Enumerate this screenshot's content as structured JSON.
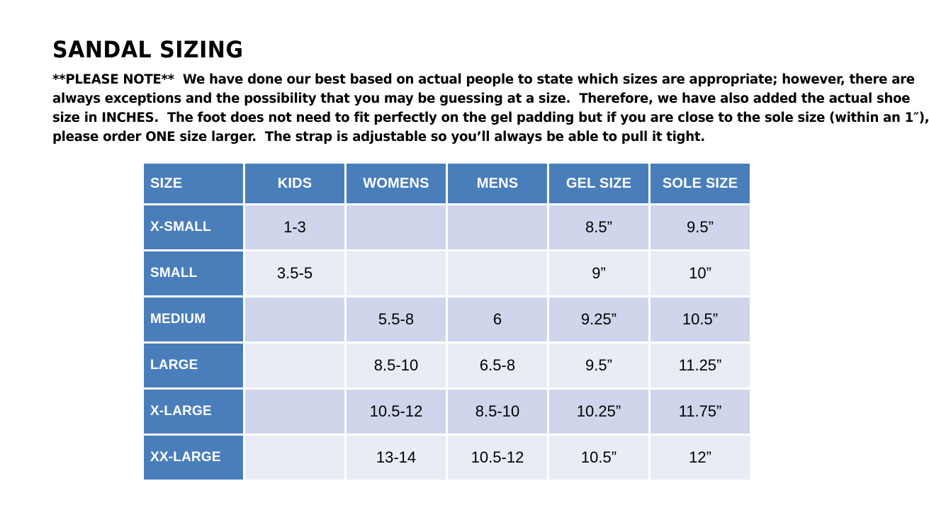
{
  "title": "SANDAL SIZING",
  "note": {
    "lines": [
      "**PLEASE NOTE**  We have done our best based on actual people to state which sizes are appropriate; however, there are",
      "always exceptions and the possibility that you may be guessing at a size.  Therefore, we have also added the actual shoe",
      "size in INCHES.  The foot does not need to fit perfectly on the gel padding but if you are close to the sole size (within an 1″),",
      "please order ONE size larger.  The strap is adjustable so you’ll always be able to pull it tight."
    ]
  },
  "table": {
    "columns": [
      "SIZE",
      "KIDS",
      "WOMENS",
      "MENS",
      "GEL SIZE",
      "SOLE SIZE"
    ],
    "rows": [
      {
        "size": "X-SMALL",
        "cells": [
          "1-3",
          "",
          "",
          "8.5”",
          "9.5”"
        ]
      },
      {
        "size": "SMALL",
        "cells": [
          "3.5-5",
          "",
          "",
          "9”",
          "10”"
        ]
      },
      {
        "size": "MEDIUM",
        "cells": [
          "",
          "5.5-8",
          "6",
          "9.25”",
          "10.5”"
        ]
      },
      {
        "size": "LARGE",
        "cells": [
          "",
          "8.5-10",
          "6.5-8",
          "9.5”",
          "11.25”"
        ]
      },
      {
        "size": "X-LARGE",
        "cells": [
          "",
          "10.5-12",
          "8.5-10",
          "10.25”",
          "11.75”"
        ]
      },
      {
        "size": "XX-LARGE",
        "cells": [
          "",
          "13-14",
          "10.5-12",
          "10.5”",
          "12”"
        ]
      }
    ]
  },
  "colors": {
    "accent": "#4a7ebb",
    "band_dark": "#cfd5ea",
    "band_light": "#e9ebf5",
    "text": "#000000",
    "header_text": "#ffffff",
    "background": "#ffffff"
  }
}
